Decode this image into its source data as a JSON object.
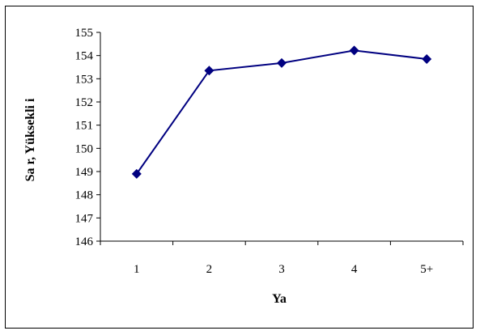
{
  "chart_data": {
    "type": "line",
    "title": "",
    "xlabel": "Ya",
    "ylabel": "Sa  r, Yüksekli  i",
    "categories": [
      "1",
      "2",
      "3",
      "4",
      "5+"
    ],
    "series": [
      {
        "values": [
          148.9,
          153.35,
          153.68,
          154.22,
          153.85
        ]
      }
    ],
    "ylim": [
      146,
      155
    ],
    "yticks": [
      "146",
      "147",
      "148",
      "149",
      "150",
      "151",
      "152",
      "153",
      "154",
      "155"
    ],
    "grid": false,
    "legend": "none",
    "colors": {
      "series": "#000080",
      "axis": "#000000",
      "border": "#000000"
    },
    "marker": "diamond"
  }
}
